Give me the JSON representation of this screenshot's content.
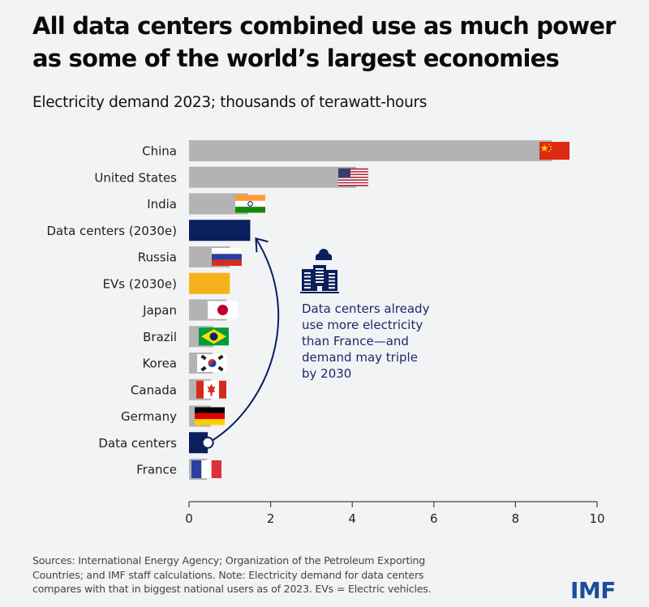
{
  "header": {
    "title": "All data centers combined use as much power as some of the world’s largest economies",
    "subtitle": "Electricity demand 2023; thousands of terawatt-hours"
  },
  "chart_data": {
    "type": "bar",
    "orientation": "horizontal",
    "title": "All data centers combined use as much power as some of the world’s largest economies",
    "subtitle": "Electricity demand 2023; thousands of terawatt-hours",
    "xlabel": "",
    "ylabel": "",
    "xlim": [
      0,
      10
    ],
    "xticks": [
      0,
      2,
      4,
      6,
      8,
      10
    ],
    "grid": false,
    "categories": [
      "China",
      "United States",
      "India",
      "Data centers (2030e)",
      "Russia",
      "EVs (2030e)",
      "Japan",
      "Brazil",
      "Korea",
      "Canada",
      "Germany",
      "Data centers",
      "France"
    ],
    "values": [
      8.9,
      4.1,
      1.45,
      1.5,
      1.0,
      1.0,
      0.92,
      0.6,
      0.58,
      0.54,
      0.53,
      0.46,
      0.44
    ],
    "bar_kinds": [
      "country",
      "country",
      "country",
      "datacenter",
      "country",
      "ev",
      "country",
      "country",
      "country",
      "country",
      "country",
      "datacenter",
      "country"
    ],
    "flags": [
      "china",
      "usa",
      "india",
      null,
      "russia",
      null,
      "japan",
      "brazil",
      "korea",
      "canada",
      "germany",
      null,
      "france"
    ],
    "colors": {
      "country": "#b3b3b3",
      "datacenter": "#0a1f5c",
      "ev": "#f5b21a"
    },
    "annotation": {
      "icon": "data-center-building-icon",
      "lines": [
        "Data centers already",
        "use more electricity",
        "than France—and",
        "demand may triple",
        "by 2030"
      ],
      "arrow": "from Data centers to Data centers (2030e)"
    }
  },
  "footer": {
    "source_lines": [
      "Sources: International Energy Agency; Organization of the Petroleum Exporting",
      "Countries; and IMF staff calculations. Note: Electricity demand for data centers",
      "compares with that in biggest national users as of 2023. EVs = Electric vehicles."
    ],
    "logo_text": "IMF",
    "logo_color": "#1b4f9c"
  }
}
